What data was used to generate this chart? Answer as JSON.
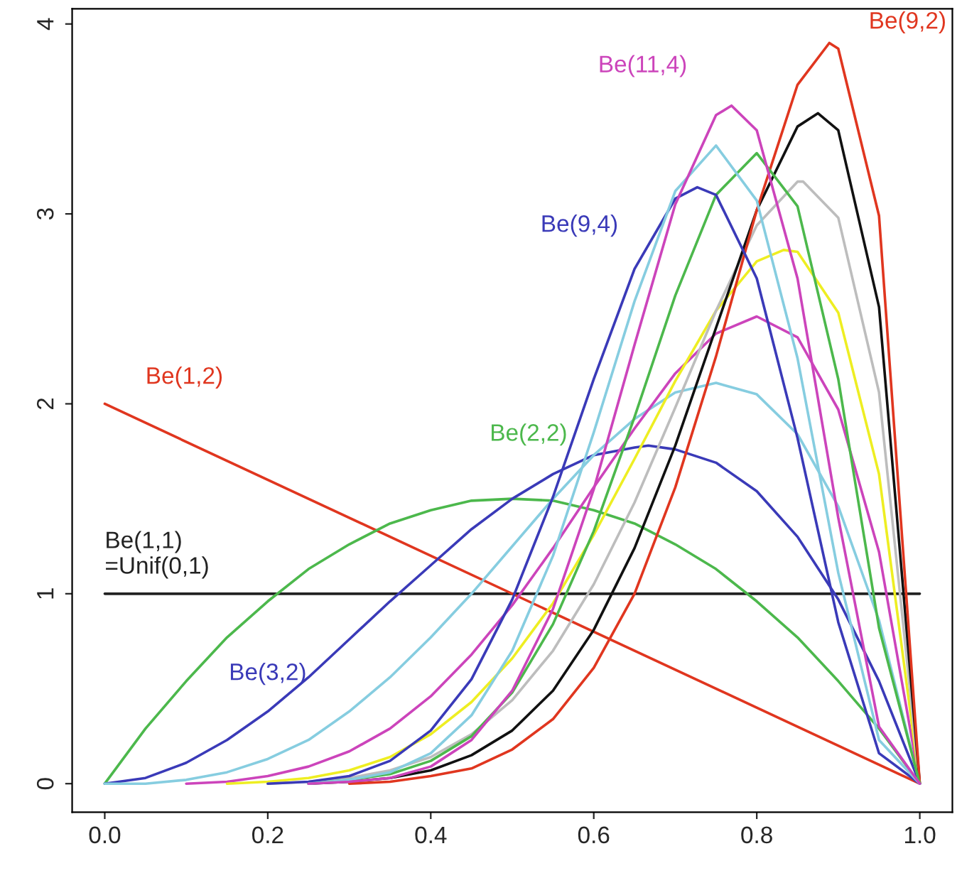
{
  "chart_data": {
    "type": "line",
    "xlim": [
      -0.04,
      1.04
    ],
    "ylim": [
      -0.15,
      4.08
    ],
    "xticks": [
      {
        "value": 0,
        "label": "0.0"
      },
      {
        "value": 0.2,
        "label": "0.2"
      },
      {
        "value": 0.4,
        "label": "0.4"
      },
      {
        "value": 0.6,
        "label": "0.6"
      },
      {
        "value": 0.8,
        "label": "0.8"
      },
      {
        "value": 1,
        "label": "1.0"
      }
    ],
    "yticks": [
      0,
      1,
      2,
      3,
      4
    ],
    "grid": false,
    "legend": false,
    "marker": "none",
    "line_style": "solid",
    "series": [
      {
        "name": "Be(1,1)\n=Unif(0,1)",
        "color": "#222222",
        "x": [
          0,
          1
        ],
        "values": [
          1,
          1
        ]
      },
      {
        "name": "Be(1,2)",
        "color": "#e0361f",
        "x": [
          0,
          1
        ],
        "values": [
          2,
          0
        ]
      },
      {
        "name": "Be(2,2)",
        "color": "#4cb84c",
        "x": [
          0,
          0.05,
          0.1,
          0.15,
          0.2,
          0.25,
          0.3,
          0.35,
          0.4,
          0.45,
          0.5,
          0.55,
          0.6,
          0.65,
          0.7,
          0.75,
          0.8,
          0.85,
          0.9,
          0.95,
          1
        ],
        "values": [
          0,
          0.29,
          0.54,
          0.77,
          0.96,
          1.13,
          1.26,
          1.37,
          1.44,
          1.49,
          1.5,
          1.49,
          1.44,
          1.37,
          1.26,
          1.13,
          0.96,
          0.77,
          0.54,
          0.29,
          0
        ]
      },
      {
        "name": "Be(3,2)",
        "color": "#3a3ab8",
        "x": [
          0,
          0.05,
          0.1,
          0.15,
          0.2,
          0.25,
          0.3,
          0.35,
          0.4,
          0.45,
          0.5,
          0.55,
          0.6,
          0.65,
          0.667,
          0.7,
          0.75,
          0.8,
          0.85,
          0.9,
          0.95,
          1
        ],
        "values": [
          0,
          0.03,
          0.11,
          0.23,
          0.38,
          0.56,
          0.76,
          0.96,
          1.15,
          1.34,
          1.5,
          1.63,
          1.73,
          1.77,
          1.78,
          1.76,
          1.69,
          1.54,
          1.3,
          0.97,
          0.54,
          0
        ]
      },
      {
        "color": "#86cde0",
        "x": [
          0,
          0.05,
          0.1,
          0.15,
          0.2,
          0.25,
          0.3,
          0.35,
          0.4,
          0.45,
          0.5,
          0.55,
          0.6,
          0.65,
          0.7,
          0.75,
          0.8,
          0.85,
          0.9,
          0.95,
          1
        ],
        "values": [
          0,
          0,
          0.02,
          0.06,
          0.13,
          0.23,
          0.38,
          0.56,
          0.77,
          1.0,
          1.25,
          1.5,
          1.73,
          1.92,
          2.06,
          2.11,
          2.05,
          1.84,
          1.46,
          0.86,
          0
        ]
      },
      {
        "color": "#cc44bb",
        "x": [
          0.1,
          0.15,
          0.2,
          0.25,
          0.3,
          0.35,
          0.4,
          0.45,
          0.5,
          0.55,
          0.6,
          0.65,
          0.7,
          0.75,
          0.8,
          0.85,
          0.9,
          0.95,
          1
        ],
        "values": [
          0,
          0.01,
          0.04,
          0.09,
          0.17,
          0.29,
          0.46,
          0.68,
          0.94,
          1.24,
          1.56,
          1.87,
          2.16,
          2.37,
          2.46,
          2.35,
          1.97,
          1.22,
          0
        ]
      },
      {
        "color": "#eeee22",
        "x": [
          0.15,
          0.2,
          0.25,
          0.3,
          0.35,
          0.4,
          0.45,
          0.5,
          0.55,
          0.6,
          0.65,
          0.7,
          0.75,
          0.8,
          0.833,
          0.85,
          0.9,
          0.95,
          1
        ],
        "values": [
          0,
          0.01,
          0.03,
          0.07,
          0.14,
          0.26,
          0.43,
          0.66,
          0.95,
          1.31,
          1.71,
          2.12,
          2.49,
          2.75,
          2.81,
          2.8,
          2.48,
          1.63,
          0
        ]
      },
      {
        "color": "#bdbdbd",
        "x": [
          0.2,
          0.25,
          0.3,
          0.35,
          0.4,
          0.45,
          0.5,
          0.55,
          0.6,
          0.65,
          0.7,
          0.75,
          0.8,
          0.85,
          0.857,
          0.9,
          0.95,
          1
        ],
        "values": [
          0,
          0.01,
          0.03,
          0.07,
          0.14,
          0.26,
          0.44,
          0.7,
          1.05,
          1.48,
          1.98,
          2.49,
          2.94,
          3.17,
          3.17,
          2.98,
          2.06,
          0
        ]
      },
      {
        "color": "#111111",
        "x": [
          0.25,
          0.3,
          0.35,
          0.4,
          0.45,
          0.5,
          0.55,
          0.6,
          0.65,
          0.7,
          0.75,
          0.8,
          0.85,
          0.875,
          0.9,
          0.95,
          1
        ],
        "values": [
          0,
          0.01,
          0.03,
          0.07,
          0.15,
          0.28,
          0.49,
          0.81,
          1.24,
          1.78,
          2.4,
          3.02,
          3.46,
          3.53,
          3.44,
          2.51,
          0
        ]
      },
      {
        "name": "Be(9,2)",
        "color": "#e0361f",
        "x": [
          0.3,
          0.35,
          0.4,
          0.45,
          0.5,
          0.55,
          0.6,
          0.65,
          0.7,
          0.75,
          0.8,
          0.85,
          0.889,
          0.9,
          0.95,
          1
        ],
        "values": [
          0,
          0.01,
          0.04,
          0.08,
          0.18,
          0.34,
          0.61,
          1.0,
          1.56,
          2.25,
          3.02,
          3.68,
          3.9,
          3.87,
          2.99,
          0
        ]
      },
      {
        "color": "#4cb84c",
        "x": [
          0.25,
          0.3,
          0.35,
          0.4,
          0.45,
          0.5,
          0.55,
          0.6,
          0.65,
          0.7,
          0.75,
          0.8,
          0.85,
          0.9,
          0.95,
          1
        ],
        "values": [
          0,
          0.02,
          0.05,
          0.12,
          0.25,
          0.48,
          0.84,
          1.33,
          1.93,
          2.57,
          3.1,
          3.32,
          3.04,
          2.13,
          0.82,
          0
        ]
      },
      {
        "name": "Be(9,4)",
        "color": "#3a3ab8",
        "x": [
          0.2,
          0.25,
          0.3,
          0.35,
          0.4,
          0.45,
          0.5,
          0.55,
          0.6,
          0.65,
          0.7,
          0.727,
          0.75,
          0.8,
          0.85,
          0.9,
          0.95,
          1
        ],
        "values": [
          0,
          0.01,
          0.04,
          0.12,
          0.28,
          0.55,
          0.97,
          1.51,
          2.13,
          2.71,
          3.08,
          3.14,
          3.1,
          2.66,
          1.82,
          0.85,
          0.16,
          0
        ]
      },
      {
        "color": "#86cde0",
        "x": [
          0.25,
          0.3,
          0.35,
          0.4,
          0.45,
          0.5,
          0.55,
          0.6,
          0.65,
          0.7,
          0.75,
          0.8,
          0.85,
          0.9,
          0.95,
          1
        ],
        "values": [
          0,
          0.02,
          0.06,
          0.16,
          0.36,
          0.7,
          1.2,
          1.85,
          2.54,
          3.12,
          3.36,
          3.07,
          2.24,
          1.11,
          0.23,
          0
        ]
      },
      {
        "name": "Be(11,4)",
        "color": "#cc44bb",
        "x": [
          0.25,
          0.3,
          0.35,
          0.4,
          0.45,
          0.5,
          0.55,
          0.6,
          0.65,
          0.7,
          0.75,
          0.769,
          0.8,
          0.85,
          0.9,
          0.95,
          1
        ],
        "values": [
          0,
          0.01,
          0.03,
          0.09,
          0.23,
          0.49,
          0.92,
          1.55,
          2.31,
          3.05,
          3.52,
          3.57,
          3.44,
          2.66,
          1.4,
          0.3,
          0
        ]
      }
    ]
  }
}
